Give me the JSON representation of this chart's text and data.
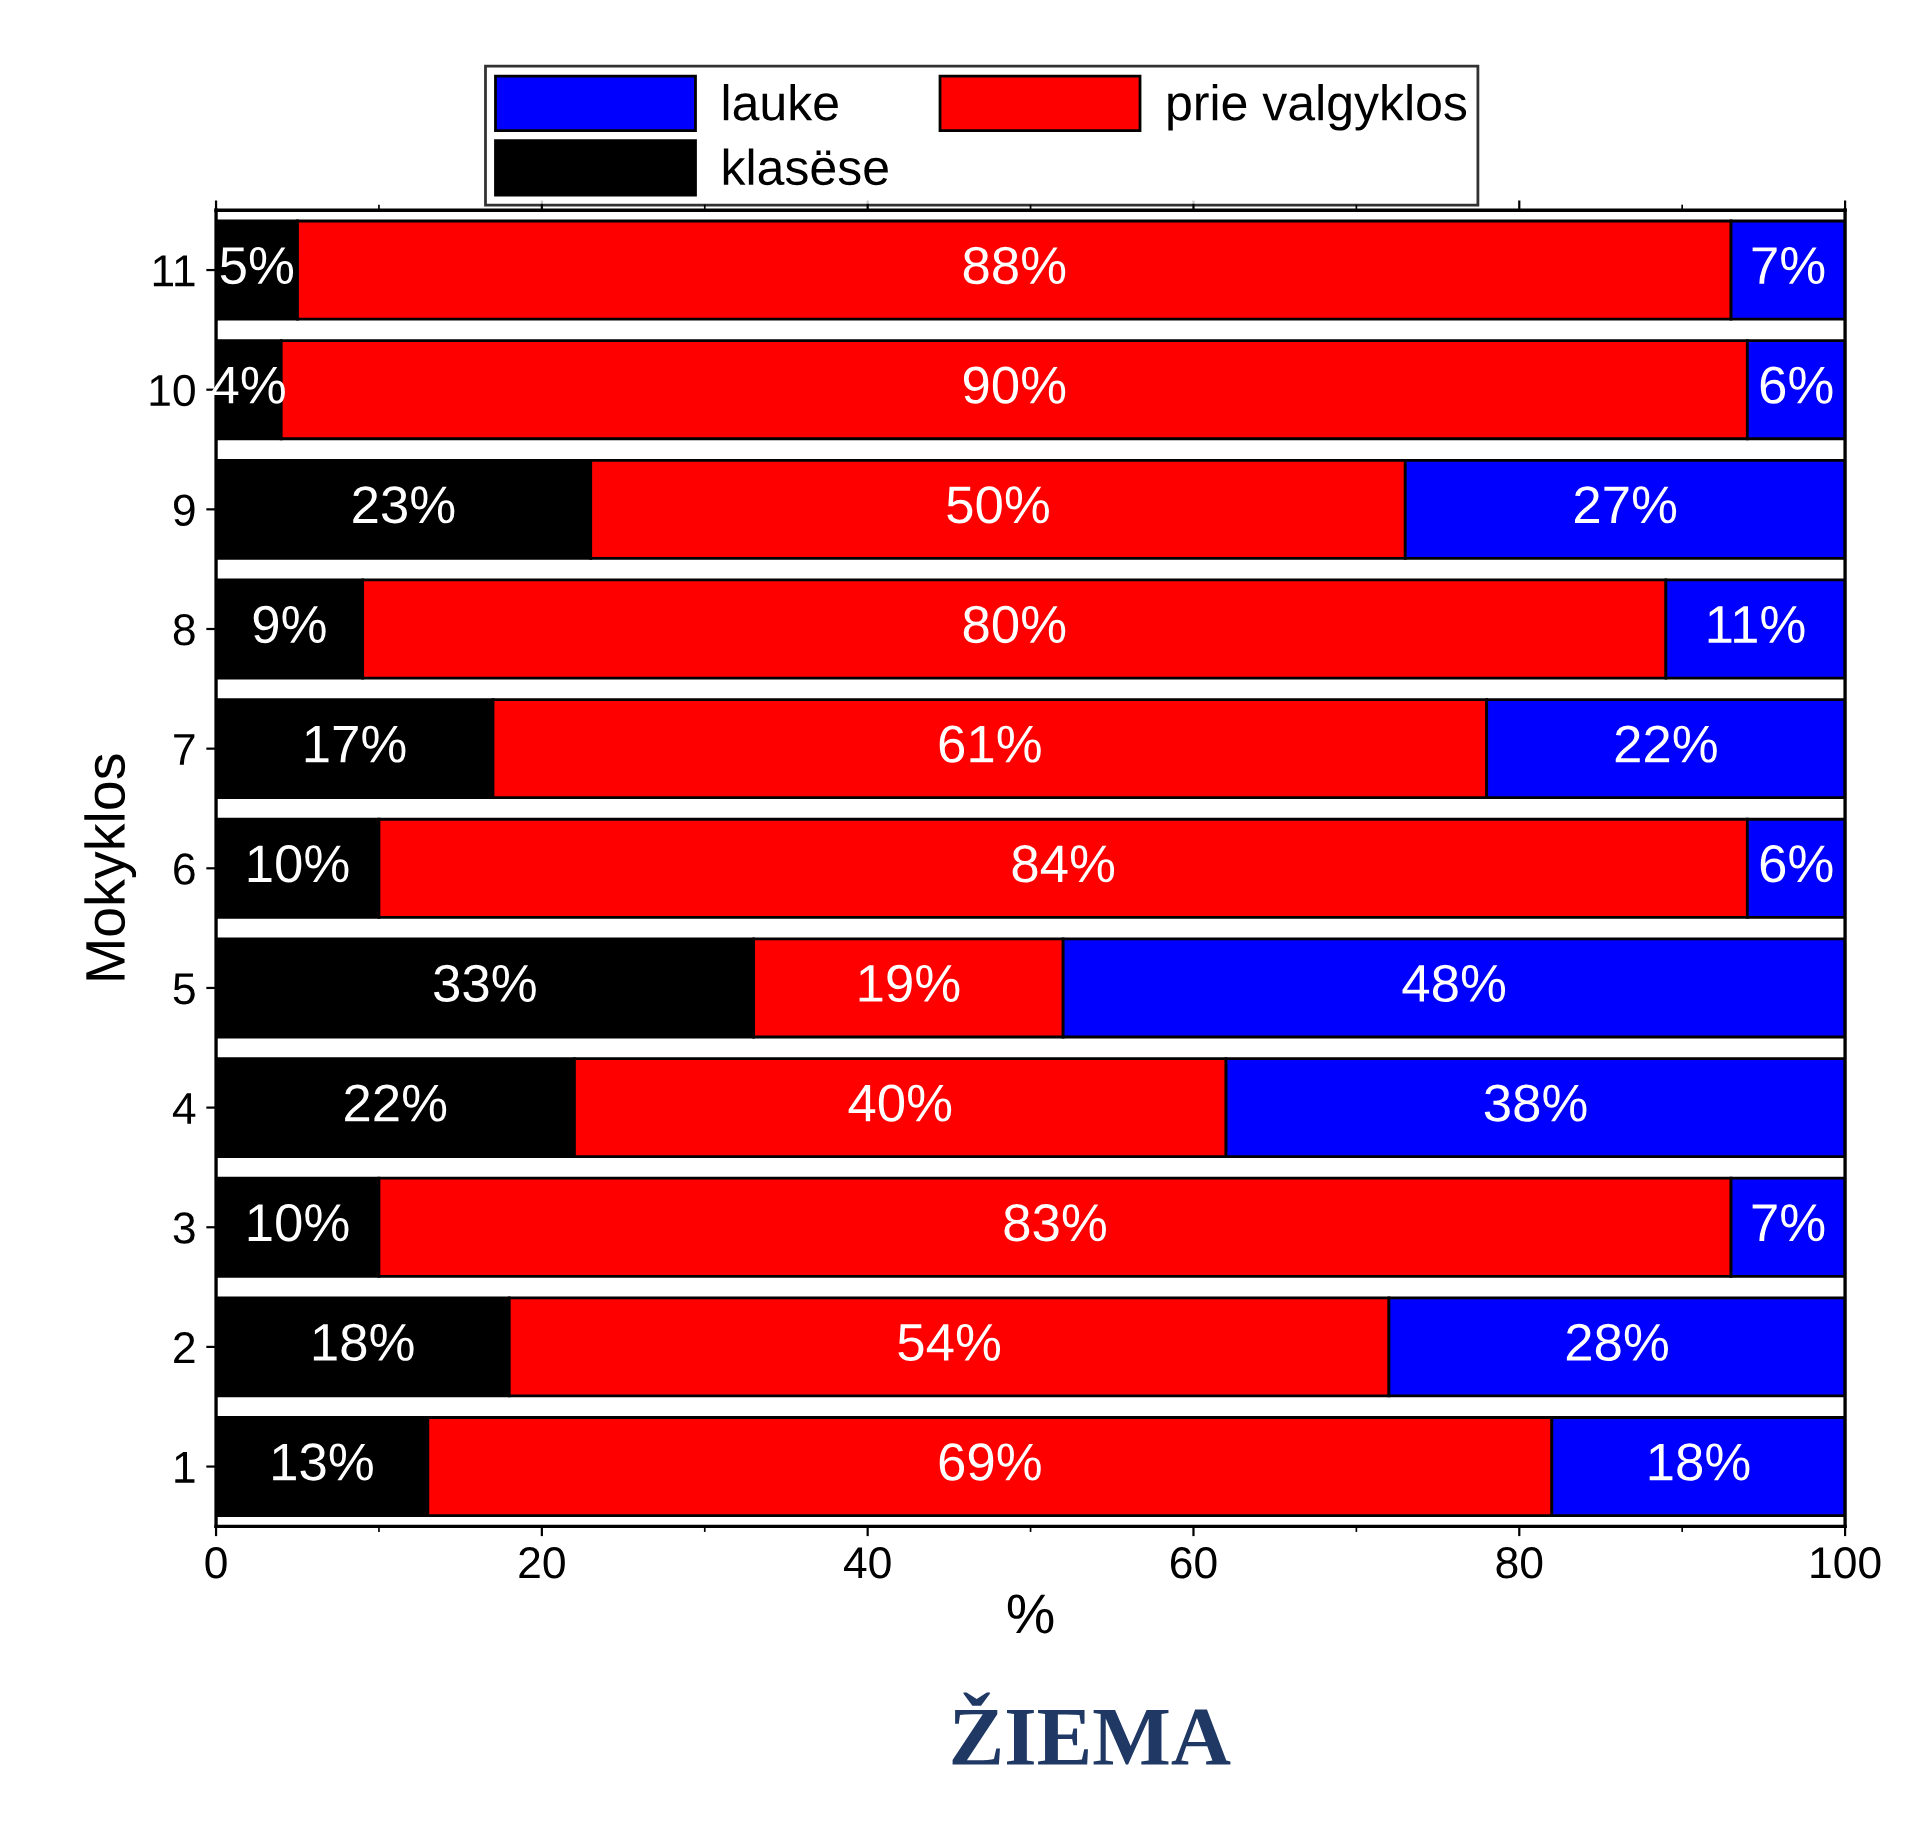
{
  "chart_data": {
    "type": "bar",
    "orientation": "horizontal",
    "stacked": true,
    "title": "ŽIEMA",
    "xlabel": "%",
    "ylabel": "Mokyklos",
    "categories": [
      "11",
      "10",
      "9",
      "8",
      "7",
      "6",
      "5",
      "4",
      "3",
      "2",
      "1"
    ],
    "series": [
      {
        "name": "klasëse",
        "color": "#000000",
        "values": [
          5,
          4,
          23,
          9,
          17,
          10,
          33,
          22,
          10,
          18,
          13
        ],
        "value_labels": [
          "5%",
          "4%",
          "23%",
          "9%",
          "17%",
          "10%",
          "33%",
          "22%",
          "10%",
          "18%",
          "13%"
        ]
      },
      {
        "name": "prie valgyklos",
        "color": "#ff0000",
        "values": [
          88,
          90,
          50,
          80,
          61,
          84,
          19,
          40,
          83,
          54,
          69
        ],
        "value_labels": [
          "88%",
          "90%",
          "50%",
          "80%",
          "61%",
          "84%",
          "19%",
          "40%",
          "83%",
          "54%",
          "69%"
        ]
      },
      {
        "name": "lauke",
        "color": "#0000ff",
        "values": [
          7,
          6,
          27,
          11,
          22,
          6,
          48,
          38,
          7,
          28,
          18
        ],
        "value_labels": [
          "7%",
          "6%",
          "27%",
          "11%",
          "22%",
          "6%",
          "48%",
          "38%",
          "7%",
          "28%",
          "18%"
        ]
      }
    ],
    "xlim": [
      0,
      100
    ],
    "xticks": [
      0,
      20,
      40,
      60,
      80,
      100
    ],
    "legend": "top",
    "grid": false
  }
}
